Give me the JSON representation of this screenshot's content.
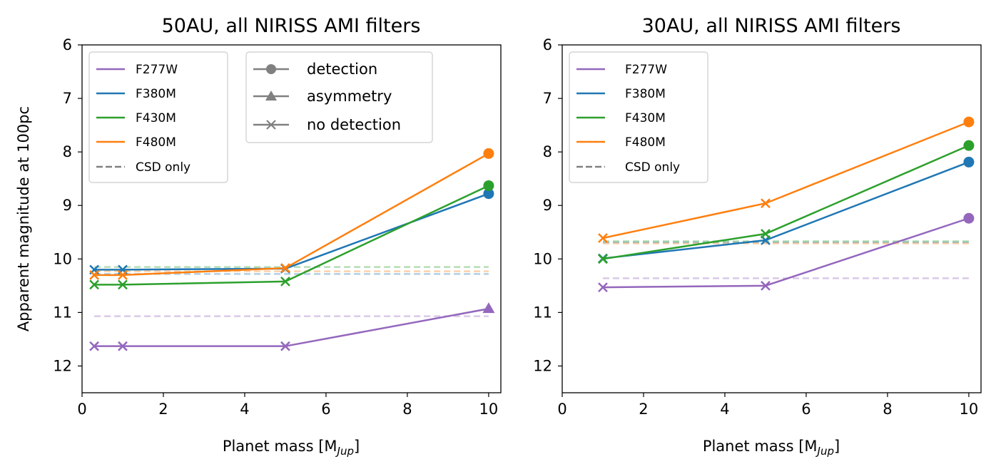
{
  "chart_data": [
    {
      "type": "line",
      "title": "50AU, all NIRISS AMI filters",
      "xlabel": "Planet mass [M",
      "xlabel_sub": "Jup",
      "xlabel_end": "]",
      "ylabel": "Apparent magnitude at 100pc",
      "xlim": [
        0,
        10.3
      ],
      "ylim": [
        12.5,
        6
      ],
      "xticks": [
        "0",
        "2",
        "4",
        "6",
        "8",
        "10"
      ],
      "yticks": [
        "6",
        "7",
        "8",
        "9",
        "10",
        "11",
        "12"
      ],
      "series": [
        {
          "name": "F277W",
          "color": "#9467bd",
          "x": [
            0.3,
            1,
            5,
            10
          ],
          "y": [
            11.63,
            11.63,
            11.63,
            10.93
          ],
          "markers": [
            "x",
            "x",
            "x",
            "triangle"
          ],
          "csd_only": 11.07
        },
        {
          "name": "F380M",
          "color": "#1f77b4",
          "x": [
            0.3,
            1,
            5,
            10
          ],
          "y": [
            10.2,
            10.2,
            10.18,
            8.78
          ],
          "markers": [
            "x",
            "x",
            "x",
            "circle"
          ],
          "csd_only": 10.28
        },
        {
          "name": "F430M",
          "color": "#2ca02c",
          "x": [
            0.3,
            1,
            5,
            10
          ],
          "y": [
            10.48,
            10.48,
            10.42,
            8.63
          ],
          "markers": [
            "x",
            "x",
            "x",
            "circle"
          ],
          "csd_only": 10.15
        },
        {
          "name": "F480M",
          "color": "#ff7f0e",
          "x": [
            0.3,
            1,
            5,
            10
          ],
          "y": [
            10.3,
            10.3,
            10.17,
            8.03
          ],
          "markers": [
            "x",
            "x",
            "x",
            "circle"
          ],
          "csd_only": 10.23
        }
      ],
      "csd_xrange": [
        0.3,
        10
      ]
    },
    {
      "type": "line",
      "title": "30AU, all NIRISS AMI filters",
      "xlabel": "Planet mass [M",
      "xlabel_sub": "Jup",
      "xlabel_end": "]",
      "xlim": [
        0,
        10.3
      ],
      "ylim": [
        12.5,
        6
      ],
      "xticks": [
        "0",
        "2",
        "4",
        "6",
        "8",
        "10"
      ],
      "yticks": [
        "6",
        "7",
        "8",
        "9",
        "10",
        "11",
        "12"
      ],
      "series": [
        {
          "name": "F277W",
          "color": "#9467bd",
          "x": [
            1,
            5,
            10
          ],
          "y": [
            10.53,
            10.5,
            9.24
          ],
          "markers": [
            "x",
            "x",
            "circle"
          ],
          "csd_only": 10.36
        },
        {
          "name": "F380M",
          "color": "#1f77b4",
          "x": [
            1,
            5,
            10
          ],
          "y": [
            9.99,
            9.65,
            8.19
          ],
          "markers": [
            "x",
            "x",
            "circle"
          ],
          "csd_only": 9.69
        },
        {
          "name": "F430M",
          "color": "#2ca02c",
          "x": [
            1,
            5,
            10
          ],
          "y": [
            10.0,
            9.53,
            7.88
          ],
          "markers": [
            "x",
            "x",
            "circle"
          ],
          "csd_only": 9.67
        },
        {
          "name": "F480M",
          "color": "#ff7f0e",
          "x": [
            1,
            5,
            10
          ],
          "y": [
            9.61,
            8.96,
            7.44
          ],
          "markers": [
            "x",
            "x",
            "circle"
          ],
          "csd_only": 9.71
        }
      ],
      "csd_xrange": [
        1,
        10
      ]
    }
  ],
  "legend": {
    "series_labels": [
      "F277W",
      "F380M",
      "F430M",
      "F480M"
    ],
    "csd_label": "CSD only",
    "marker_labels": [
      "detection",
      "asymmetry",
      "no detection"
    ],
    "marker_color": "#808080"
  }
}
